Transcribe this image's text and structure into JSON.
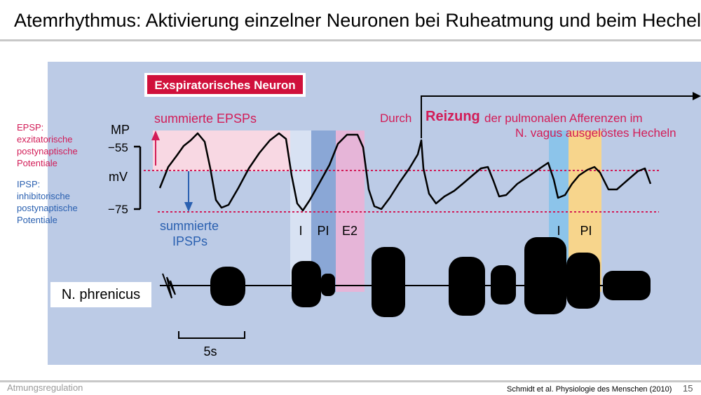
{
  "slide": {
    "title": "Atemrhythmus: Aktivierung einzelner Neuronen bei Ruheatmung und beim Hecheln",
    "footer_left": "Atmungsregulation",
    "footer_source": "Schmidt et al. Physiologie des Menschen (2010)",
    "page_number": "15"
  },
  "figure": {
    "neuron_title": "Exspiratorisches Neuron",
    "epsp_label": "summierte EPSPs",
    "ipsp_label_1": "summierte",
    "ipsp_label_2": "IPSPs",
    "axis_mp": "MP",
    "axis_mv": "mV",
    "tick_55": "−55",
    "tick_75": "−75",
    "phase_i": "I",
    "phase_pi": "PI",
    "phase_e2": "E2",
    "scale_bar": "5s",
    "nerve_label": "N. phrenicus"
  },
  "annotations": {
    "epsp_note": "EPSP:\nexzitatorische\npostynaptische\nPotentiale",
    "ipsp_note": "IPSP:\ninhibitorische\npostynaptische\nPotentiale",
    "reizung_pre": "Durch",
    "reizung_bold": "Reizung",
    "reizung_post": "der pulmonalen Afferenzen im",
    "reizung_line2": "N. vagus ausgelöstes Hecheln"
  },
  "colors": {
    "accent_red": "#d21c57",
    "accent_blue": "#2a60b0",
    "panel_bg": "#bccbe6",
    "phase_i": "#d8e2f3",
    "phase_pi": "#8aa7d6",
    "phase_e2": "#e6b5d8",
    "phase_i_pant": "#8cc4ea",
    "phase_pi_pant": "#f7d58c"
  }
}
